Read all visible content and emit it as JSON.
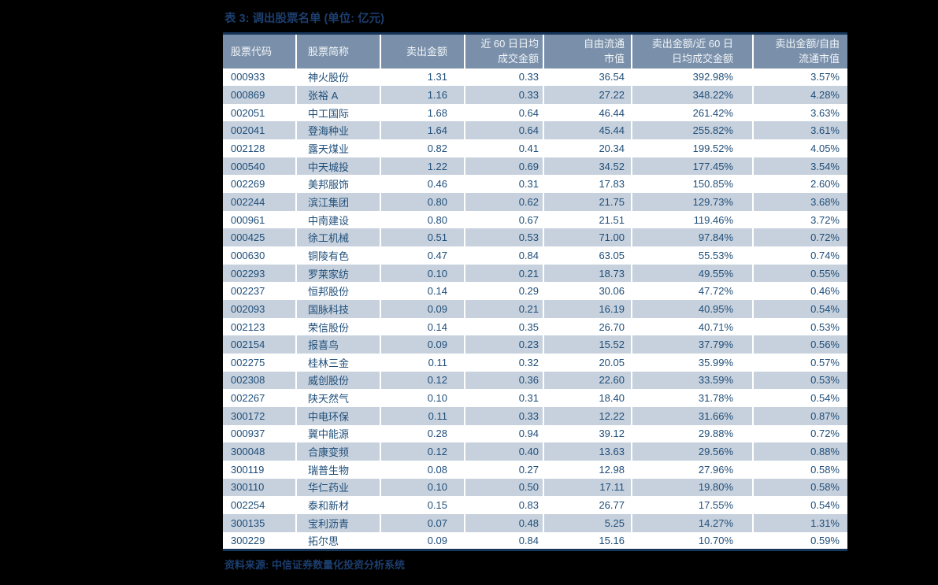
{
  "page": {
    "background_color": "#000000"
  },
  "table": {
    "title": "表 3: 调出股票名单 (单位: 亿元)",
    "source": "资料来源: 中信证券数量化投资分析系统",
    "colors": {
      "title_text": "#1C3E6E",
      "border": "#16365C",
      "header_bg": "#7A90AA",
      "header_text": "#F0F4F8",
      "stripe_bg": "#C7D1DD",
      "data_text": "#1F4E79",
      "row_bg": "#FFFFFF"
    },
    "columns": [
      {
        "line1": "股票代码",
        "line2": ""
      },
      {
        "line1": "股票简称",
        "line2": ""
      },
      {
        "line1": "卖出金额",
        "line2": ""
      },
      {
        "line1": "近 60 日日均",
        "line2": "成交金额"
      },
      {
        "line1": "自由流通",
        "line2": "市值"
      },
      {
        "line1": "卖出金额/近 60 日",
        "line2": "日均成交金额"
      },
      {
        "line1": "卖出金额/自由",
        "line2": "流通市值"
      }
    ],
    "rows": [
      [
        "000933",
        "神火股份",
        "1.31",
        "0.33",
        "36.54",
        "392.98%",
        "3.57%"
      ],
      [
        "000869",
        "张裕 A",
        "1.16",
        "0.33",
        "27.22",
        "348.22%",
        "4.28%"
      ],
      [
        "002051",
        "中工国际",
        "1.68",
        "0.64",
        "46.44",
        "261.42%",
        "3.63%"
      ],
      [
        "002041",
        "登海种业",
        "1.64",
        "0.64",
        "45.44",
        "255.82%",
        "3.61%"
      ],
      [
        "002128",
        "露天煤业",
        "0.82",
        "0.41",
        "20.34",
        "199.52%",
        "4.05%"
      ],
      [
        "000540",
        "中天城投",
        "1.22",
        "0.69",
        "34.52",
        "177.45%",
        "3.54%"
      ],
      [
        "002269",
        "美邦服饰",
        "0.46",
        "0.31",
        "17.83",
        "150.85%",
        "2.60%"
      ],
      [
        "002244",
        "滨江集团",
        "0.80",
        "0.62",
        "21.75",
        "129.73%",
        "3.68%"
      ],
      [
        "000961",
        "中南建设",
        "0.80",
        "0.67",
        "21.51",
        "119.46%",
        "3.72%"
      ],
      [
        "000425",
        "徐工机械",
        "0.51",
        "0.53",
        "71.00",
        "97.84%",
        "0.72%"
      ],
      [
        "000630",
        "铜陵有色",
        "0.47",
        "0.84",
        "63.05",
        "55.53%",
        "0.74%"
      ],
      [
        "002293",
        "罗莱家纺",
        "0.10",
        "0.21",
        "18.73",
        "49.55%",
        "0.55%"
      ],
      [
        "002237",
        "恒邦股份",
        "0.14",
        "0.29",
        "30.06",
        "47.72%",
        "0.46%"
      ],
      [
        "002093",
        "国脉科技",
        "0.09",
        "0.21",
        "16.19",
        "40.95%",
        "0.54%"
      ],
      [
        "002123",
        "荣信股份",
        "0.14",
        "0.35",
        "26.70",
        "40.71%",
        "0.53%"
      ],
      [
        "002154",
        "报喜鸟",
        "0.09",
        "0.23",
        "15.52",
        "37.79%",
        "0.56%"
      ],
      [
        "002275",
        "桂林三金",
        "0.11",
        "0.32",
        "20.05",
        "35.99%",
        "0.57%"
      ],
      [
        "002308",
        "威创股份",
        "0.12",
        "0.36",
        "22.60",
        "33.59%",
        "0.53%"
      ],
      [
        "002267",
        "陕天然气",
        "0.10",
        "0.31",
        "18.40",
        "31.78%",
        "0.54%"
      ],
      [
        "300172",
        "中电环保",
        "0.11",
        "0.33",
        "12.22",
        "31.66%",
        "0.87%"
      ],
      [
        "000937",
        "冀中能源",
        "0.28",
        "0.94",
        "39.12",
        "29.88%",
        "0.72%"
      ],
      [
        "300048",
        "合康变频",
        "0.12",
        "0.40",
        "13.63",
        "29.56%",
        "0.88%"
      ],
      [
        "300119",
        "瑞普生物",
        "0.08",
        "0.27",
        "12.98",
        "27.96%",
        "0.58%"
      ],
      [
        "300110",
        "华仁药业",
        "0.10",
        "0.50",
        "17.11",
        "19.80%",
        "0.58%"
      ],
      [
        "002254",
        "泰和新材",
        "0.15",
        "0.83",
        "26.77",
        "17.55%",
        "0.54%"
      ],
      [
        "300135",
        "宝利沥青",
        "0.07",
        "0.48",
        "5.25",
        "14.27%",
        "1.31%"
      ],
      [
        "300229",
        "拓尔思",
        "0.09",
        "0.84",
        "15.16",
        "10.70%",
        "0.59%"
      ]
    ]
  }
}
